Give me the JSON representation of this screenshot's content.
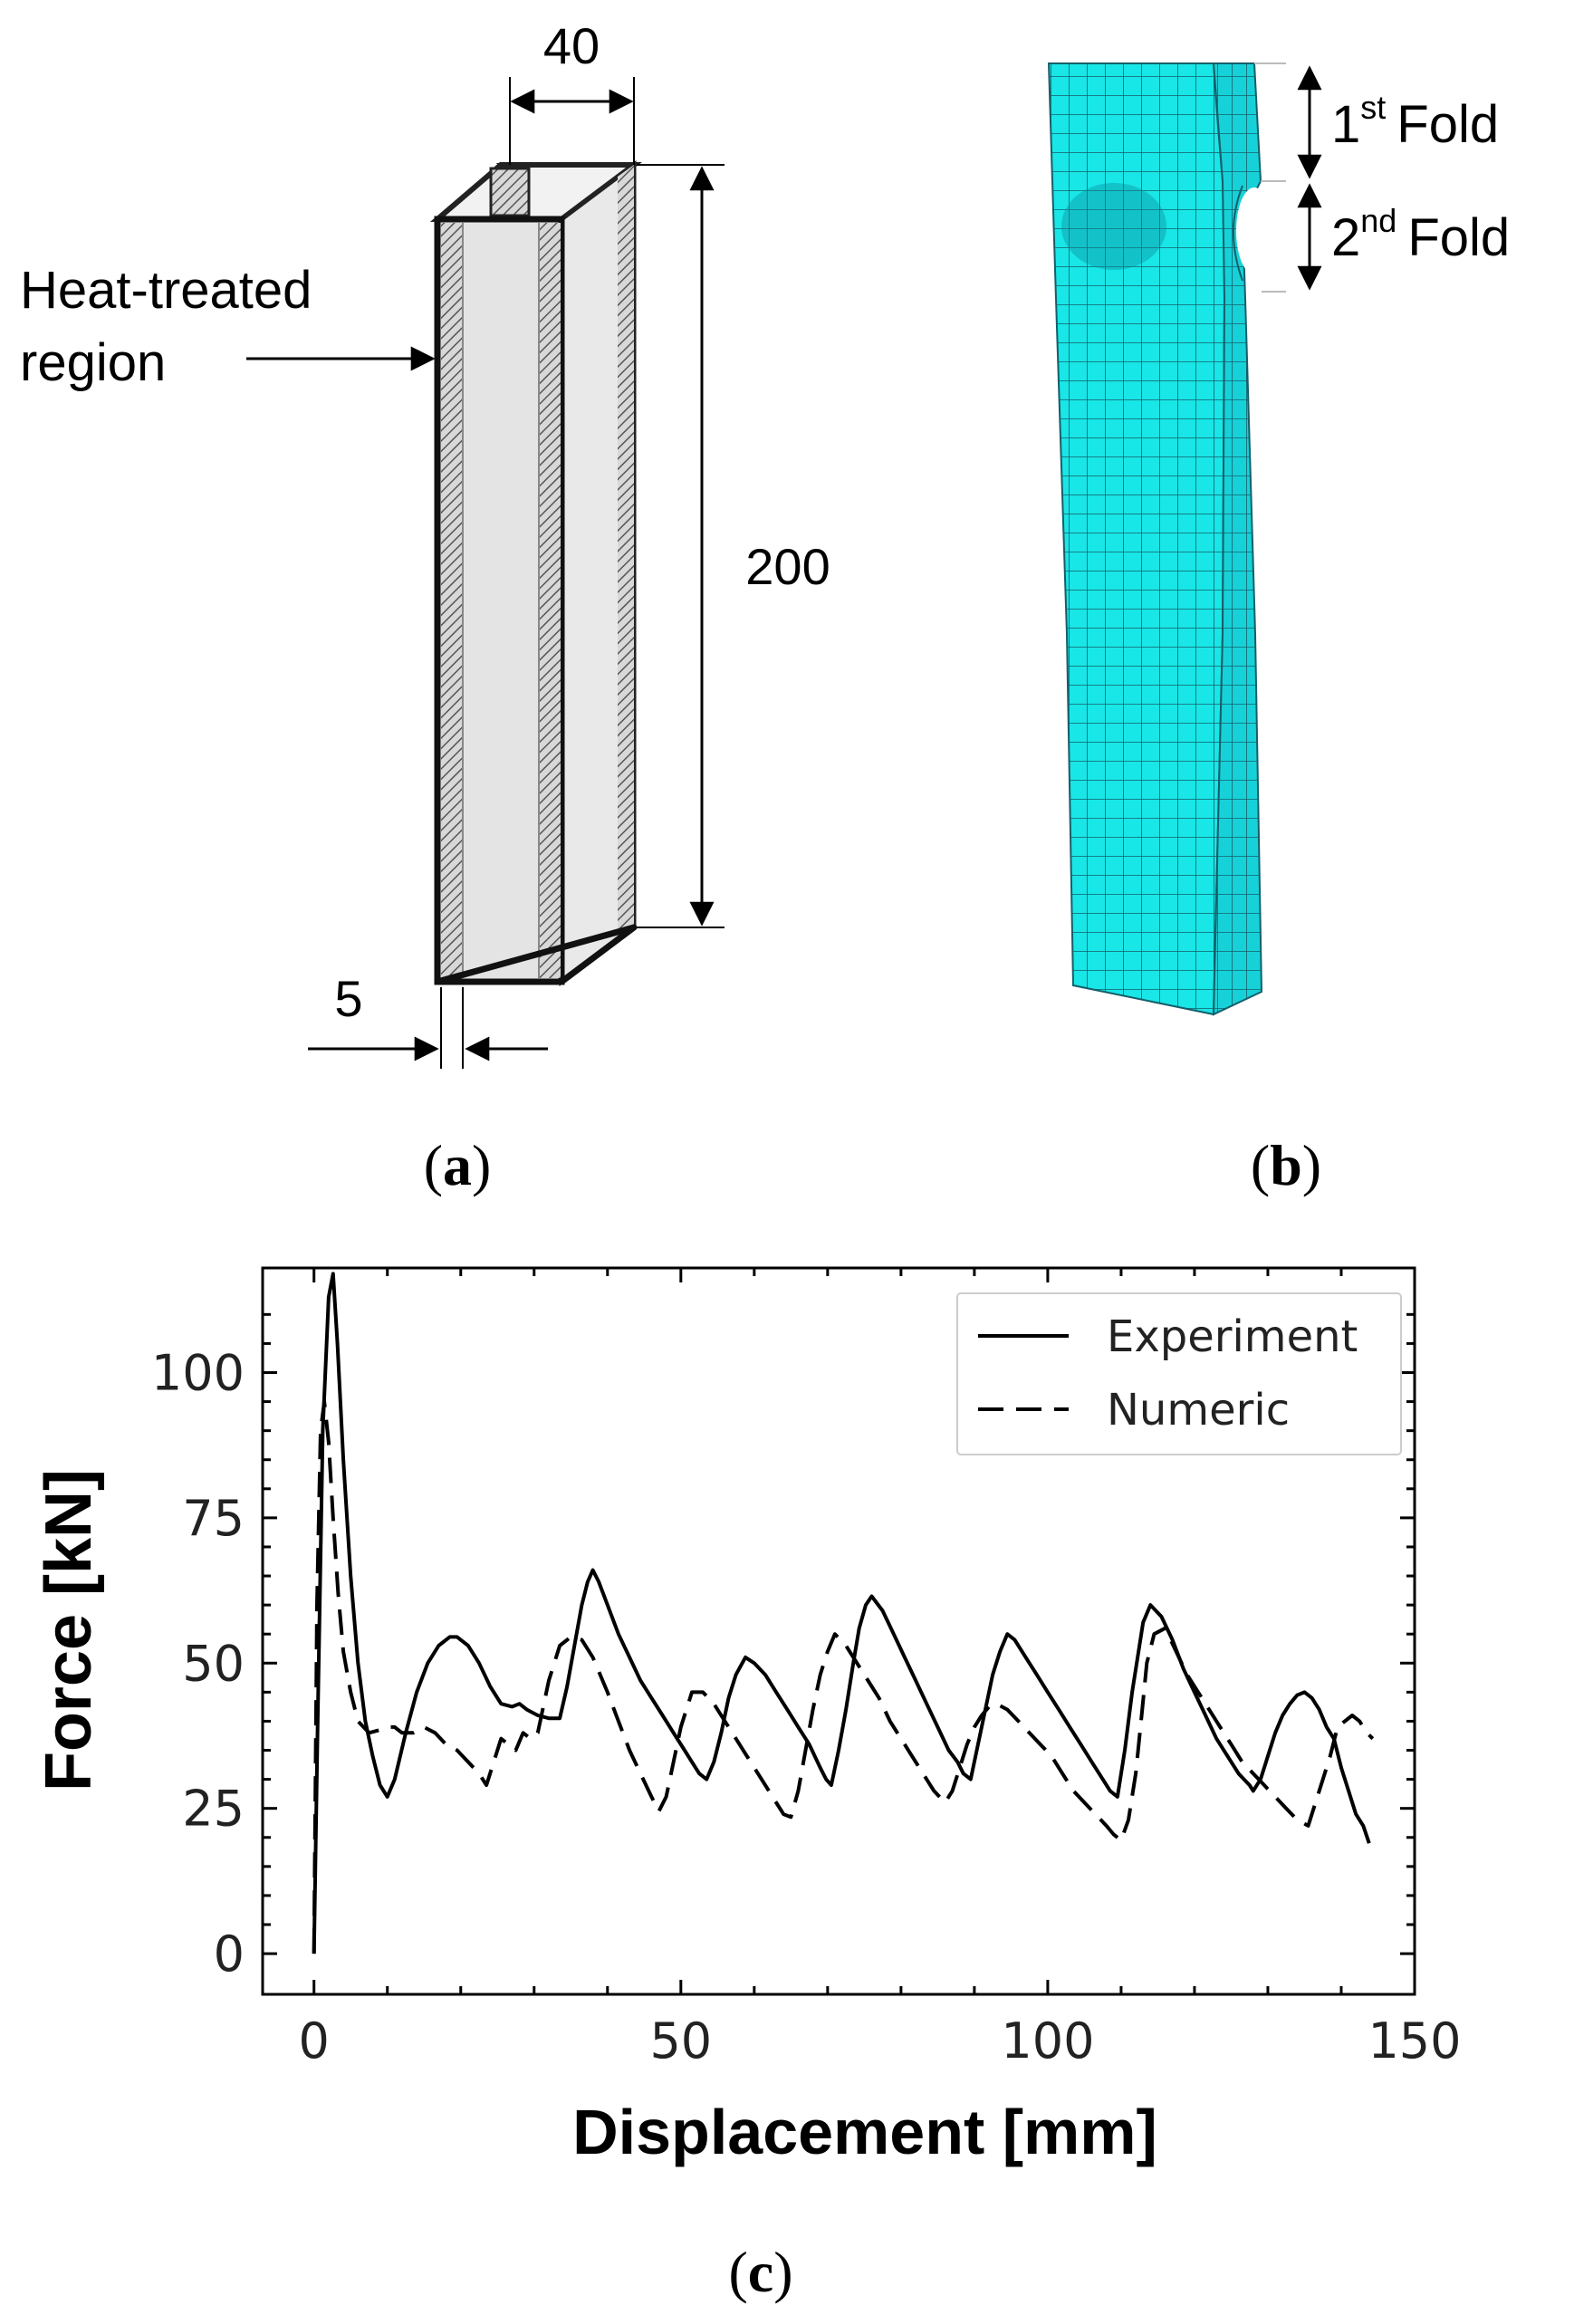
{
  "panel_a": {
    "caption_open": "(",
    "caption_letter": "a",
    "caption_close": ")",
    "dim_width": "40",
    "dim_height": "200",
    "dim_thickness": "5",
    "region_label_line1": "Heat-treated",
    "region_label_line2": "region"
  },
  "panel_b": {
    "caption_open": "(",
    "caption_letter": "b",
    "caption_close": ")",
    "fold1_num": "1",
    "fold1_sup": "st",
    "fold1_word": "Fold",
    "fold2_num": "2",
    "fold2_sup": "nd",
    "fold2_word": "Fold",
    "mesh_color": "#19e6e6"
  },
  "panel_c": {
    "caption_open": "(",
    "caption_letter": "c",
    "caption_close": ")"
  },
  "chart_data": {
    "type": "line",
    "xlabel": "Displacement [mm]",
    "ylabel": "Force [kN]",
    "xlim": [
      -7,
      150
    ],
    "ylim": [
      -7,
      118
    ],
    "xticks": [
      0,
      50,
      100,
      150
    ],
    "yticks": [
      0,
      25,
      50,
      75,
      100
    ],
    "legend_position": "top-right",
    "series": [
      {
        "name": "Experiment",
        "style": "solid",
        "x": [
          0,
          0.5,
          1.2,
          2.0,
          2.6,
          3.2,
          4.0,
          5.0,
          6.0,
          7.0,
          8.0,
          9.0,
          10.0,
          11.0,
          12.5,
          14.0,
          15.5,
          17.0,
          18.5,
          19.5,
          21.0,
          22.5,
          24.0,
          25.5,
          27.0,
          28.0,
          29.0,
          30.5,
          32.0,
          33.5,
          34.5,
          35.5,
          36.5,
          37.3,
          38.0,
          38.8,
          40.0,
          41.5,
          43.0,
          44.5,
          46.0,
          47.5,
          49.0,
          50.5,
          51.5,
          52.5,
          53.5,
          54.5,
          55.5,
          56.5,
          57.5,
          58.8,
          60.0,
          61.5,
          63.0,
          64.5,
          66.0,
          67.5,
          69.0,
          69.8,
          70.5,
          71.5,
          72.5,
          73.5,
          74.3,
          75.2,
          76.0,
          77.5,
          79.0,
          80.5,
          82.0,
          83.5,
          85.0,
          86.5,
          87.7,
          88.5,
          89.5,
          90.5,
          91.5,
          92.5,
          93.5,
          94.5,
          95.5,
          97.0,
          98.5,
          100.0,
          101.5,
          103.0,
          104.5,
          106.0,
          107.5,
          108.5,
          109.5,
          110.5,
          111.5,
          112.5,
          113.0,
          114.0,
          115.5,
          117.0,
          118.5,
          120.0,
          121.5,
          123.0,
          124.5,
          126.0,
          127.5,
          128.0,
          129.0,
          130.0,
          131.0,
          132.0,
          133.0,
          134.0,
          135.0,
          136.0,
          137.0,
          138.0,
          139.0,
          140.0,
          141.0,
          142.0,
          143.0,
          143.8
        ],
        "y": [
          0,
          40,
          90,
          113,
          117,
          105,
          85,
          65,
          50,
          40,
          34,
          29,
          27,
          30,
          38,
          45,
          50,
          53,
          54.5,
          54.5,
          53,
          50,
          46,
          43,
          42.5,
          43,
          42,
          41,
          40.5,
          40.5,
          46,
          53,
          60,
          64,
          66,
          64,
          60,
          55,
          51,
          47,
          44,
          41,
          38,
          35,
          33,
          31,
          30,
          33,
          38,
          44,
          48,
          51,
          50,
          48,
          45,
          42,
          39,
          36,
          32,
          30,
          29,
          35,
          42,
          50,
          56,
          60,
          61.5,
          59,
          55,
          51,
          47,
          43,
          39,
          35,
          33,
          31,
          30,
          36,
          42,
          48,
          52,
          55,
          54,
          51,
          48,
          45,
          42,
          39,
          36,
          33,
          30,
          28,
          27,
          35,
          45,
          53,
          57,
          60,
          58,
          54,
          49,
          45,
          41,
          37,
          34,
          31,
          29,
          28,
          30,
          34,
          38,
          41,
          43,
          44.5,
          45,
          44,
          42,
          39,
          37,
          32,
          28,
          24,
          22,
          19
        ]
      },
      {
        "name": "Numeric",
        "style": "dashed",
        "x": [
          0,
          0.4,
          0.9,
          1.4,
          2.0,
          2.6,
          3.3,
          4.0,
          5.0,
          6.0,
          7.5,
          9.0,
          10.0,
          11.0,
          12.0,
          13.5,
          15.0,
          16.5,
          18.0,
          19.5,
          21.0,
          22.5,
          23.5,
          24.5,
          25.5,
          26.5,
          27.5,
          28.5,
          29.5,
          30.5,
          32.0,
          33.5,
          35.0,
          36.5,
          38.0,
          40.0,
          41.5,
          43.0,
          44.5,
          46.0,
          47.0,
          48.0,
          49.0,
          50.0,
          51.5,
          53.0,
          54.5,
          56.0,
          57.5,
          59.0,
          60.5,
          62.0,
          63.0,
          64.0,
          65.0,
          66.0,
          67.0,
          68.0,
          69.0,
          70.0,
          71.0,
          72.5,
          74.0,
          75.5,
          77.0,
          78.5,
          80.0,
          81.5,
          83.0,
          84.5,
          86.0,
          87.0,
          88.0,
          89.0,
          90.0,
          91.0,
          92.0,
          93.0,
          94.5,
          96.0,
          97.5,
          99.0,
          100.5,
          102.0,
          103.5,
          105.0,
          106.5,
          108.0,
          109.0,
          110.0,
          111.0,
          112.0,
          112.8,
          113.5,
          114.5,
          116.0,
          117.5,
          119.0,
          120.5,
          122.0,
          123.5,
          125.0,
          126.5,
          128.0,
          129.5,
          131.0,
          132.5,
          134.0,
          135.5,
          137.0,
          138.5,
          139.5,
          140.5,
          141.5,
          142.5,
          143.5,
          144.3
        ],
        "y": [
          0,
          60,
          90,
          95,
          88,
          75,
          62,
          52,
          45,
          40,
          38,
          38.5,
          39,
          39,
          38,
          38,
          39,
          38,
          36,
          35,
          33,
          31,
          29,
          33,
          37,
          36,
          35,
          38,
          37,
          38,
          47,
          53,
          54.5,
          54,
          51,
          45,
          40,
          35,
          31,
          27,
          24.5,
          27,
          33,
          39,
          45,
          45,
          43,
          40,
          37,
          34,
          31,
          28,
          26,
          24,
          23.5,
          28,
          35,
          42,
          48,
          52,
          55,
          53,
          50,
          47,
          44,
          40,
          37,
          34,
          31,
          28,
          26,
          28,
          32,
          36,
          39,
          41,
          42.5,
          43,
          42,
          40,
          38,
          36,
          34,
          31,
          28,
          26,
          24,
          22,
          20.5,
          19.5,
          23,
          31,
          41,
          50,
          55,
          56,
          52,
          48,
          45,
          42,
          39,
          36,
          33,
          31,
          29,
          27,
          25,
          23,
          22,
          28,
          34,
          39,
          40,
          41,
          40,
          38,
          37
        ]
      }
    ]
  }
}
